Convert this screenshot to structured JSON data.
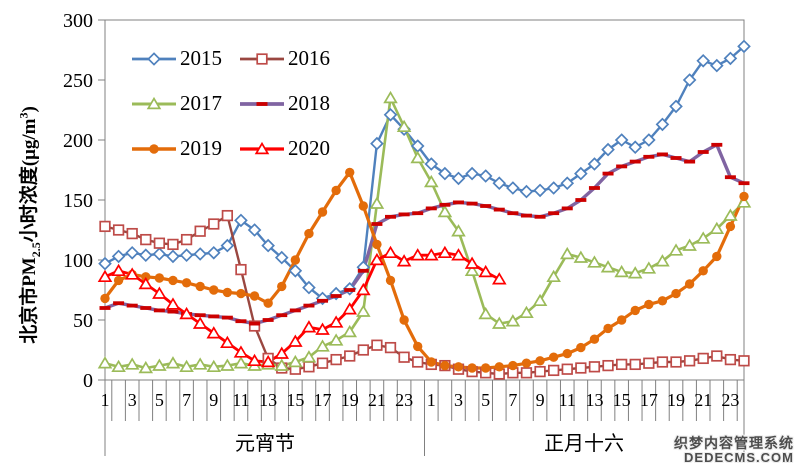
{
  "chart_data": {
    "type": "line",
    "title": "",
    "ylabel": {
      "prefix": "北京市PM",
      "sub": "2.5",
      "mid": "小时浓度(μg/m",
      "sup": "3",
      "suffix": ")"
    },
    "ylim": [
      0,
      300
    ],
    "yticks": [
      0,
      50,
      100,
      150,
      200,
      250,
      300
    ],
    "x_hour_labels": [
      "1",
      "3",
      "5",
      "7",
      "9",
      "11",
      "13",
      "15",
      "17",
      "19",
      "21",
      "23"
    ],
    "hours_per_day": 24,
    "day_groups": [
      {
        "label": "元宵节"
      },
      {
        "label": "正月十六"
      }
    ],
    "axis_color": "#808080",
    "text_color": "#000000",
    "legend_position": "upper-left-inside",
    "grid": false,
    "series": [
      {
        "name": "2015",
        "color": "#4F81BD",
        "marker": "diamond",
        "marker_color": "#4F81BD",
        "line_width": 2.4,
        "values": [
          97,
          103,
          106,
          104,
          105,
          103,
          104,
          105,
          106,
          112,
          133,
          125,
          112,
          102,
          91,
          77,
          68,
          72,
          76,
          94,
          197,
          221,
          209,
          195,
          180,
          172,
          168,
          172,
          170,
          164,
          160,
          157,
          158,
          160,
          164,
          172,
          180,
          192,
          200,
          194,
          200,
          213,
          228,
          250,
          266,
          262,
          268,
          278
        ]
      },
      {
        "name": "2016",
        "color": "#9A4740",
        "marker": "square",
        "marker_color": "#BE4B48",
        "line_width": 2.4,
        "values": [
          128,
          125,
          122,
          117,
          114,
          113,
          117,
          124,
          130,
          137,
          92,
          45,
          18,
          10,
          9,
          11,
          14,
          17,
          20,
          25,
          29,
          27,
          19,
          15,
          13,
          12,
          9,
          7,
          6,
          5,
          6,
          6,
          7,
          8,
          9,
          10,
          11,
          12,
          13,
          13,
          14,
          15,
          15,
          16,
          18,
          20,
          17,
          16
        ]
      },
      {
        "name": "2017",
        "color": "#9BBB59",
        "marker": "triangle",
        "marker_color": "#9BBB59",
        "line_width": 2.6,
        "values": [
          14,
          11,
          13,
          10,
          12,
          14,
          11,
          13,
          11,
          12,
          14,
          12,
          13,
          12,
          15,
          19,
          28,
          33,
          40,
          57,
          147,
          235,
          211,
          185,
          165,
          140,
          124,
          91,
          55,
          47,
          49,
          56,
          66,
          86,
          105,
          102,
          98,
          94,
          90,
          89,
          93,
          99,
          108,
          112,
          118,
          126,
          137,
          148
        ]
      },
      {
        "name": "2018",
        "color": "#8064A2",
        "marker": "dash",
        "marker_color": "#CC0000",
        "line_width": 3.4,
        "values": [
          60,
          64,
          62,
          60,
          58,
          57,
          55,
          54,
          53,
          52,
          49,
          47,
          50,
          54,
          58,
          62,
          66,
          70,
          75,
          91,
          130,
          136,
          138,
          139,
          143,
          146,
          148,
          147,
          145,
          142,
          139,
          137,
          136,
          139,
          143,
          150,
          160,
          172,
          178,
          182,
          186,
          188,
          185,
          182,
          190,
          196,
          169,
          164
        ]
      },
      {
        "name": "2019",
        "color": "#E36C0A",
        "marker": "circle",
        "marker_color": "#E36C0A",
        "line_width": 3.2,
        "values": [
          68,
          83,
          88,
          86,
          85,
          83,
          81,
          78,
          75,
          73,
          72,
          70,
          64,
          78,
          100,
          122,
          140,
          158,
          173,
          145,
          113,
          83,
          50,
          28,
          15,
          12,
          11,
          10,
          10,
          11,
          12,
          14,
          16,
          19,
          22,
          27,
          34,
          43,
          50,
          58,
          63,
          66,
          72,
          80,
          91,
          103,
          128,
          153
        ]
      },
      {
        "name": "2020",
        "color": "#FF0000",
        "marker": "triangle",
        "marker_color": "#FF0000",
        "line_width": 2.8,
        "values": [
          86,
          91,
          88,
          80,
          72,
          63,
          55,
          47,
          39,
          31,
          23,
          16,
          15,
          22,
          32,
          44,
          42,
          48,
          59,
          75,
          100,
          106,
          99,
          104,
          104,
          106,
          104,
          97,
          90,
          84,
          null,
          null,
          null,
          null,
          null,
          null,
          null,
          null,
          null,
          null,
          null,
          null,
          null,
          null,
          null,
          null,
          null,
          null
        ]
      }
    ],
    "watermark": {
      "line1": "织梦内容管理系统",
      "line2": "DEDECMS.COM"
    }
  }
}
